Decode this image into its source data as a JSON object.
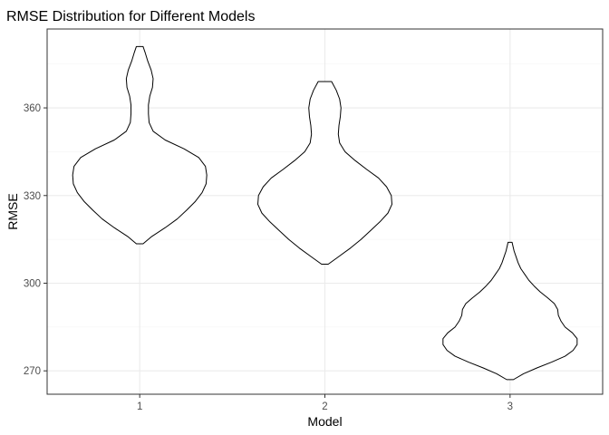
{
  "chart_data": {
    "type": "violin",
    "title": "RMSE Distribution for Different Models",
    "xlabel": "Model",
    "ylabel": "RMSE",
    "categories": [
      "1",
      "2",
      "3"
    ],
    "ylim": [
      262,
      387
    ],
    "yticks": [
      270,
      300,
      330,
      360
    ],
    "grid": true,
    "legend": "none",
    "colors": {
      "outline": "#000000",
      "grid_major": "#ebebeb",
      "grid_minor": "#f5f5f5",
      "panel_border": "#333333",
      "tick_text": "#4d4d4d"
    },
    "series": [
      {
        "category": "1",
        "range": [
          313.5,
          381
        ],
        "density": [
          [
            313.5,
            0.05
          ],
          [
            316,
            0.18
          ],
          [
            319,
            0.38
          ],
          [
            322,
            0.56
          ],
          [
            325,
            0.7
          ],
          [
            328,
            0.83
          ],
          [
            331,
            0.93
          ],
          [
            334,
            0.99
          ],
          [
            337,
            1.0
          ],
          [
            340,
            0.98
          ],
          [
            343,
            0.88
          ],
          [
            346,
            0.66
          ],
          [
            349,
            0.38
          ],
          [
            352,
            0.2
          ],
          [
            355,
            0.14
          ],
          [
            358,
            0.13
          ],
          [
            361,
            0.13
          ],
          [
            364,
            0.15
          ],
          [
            367,
            0.19
          ],
          [
            370,
            0.2
          ],
          [
            373,
            0.17
          ],
          [
            376,
            0.12
          ],
          [
            379,
            0.08
          ],
          [
            381,
            0.05
          ]
        ]
      },
      {
        "category": "2",
        "range": [
          306.5,
          369
        ],
        "density": [
          [
            306.5,
            0.05
          ],
          [
            309,
            0.2
          ],
          [
            312,
            0.38
          ],
          [
            315,
            0.54
          ],
          [
            318,
            0.68
          ],
          [
            321,
            0.82
          ],
          [
            324,
            0.94
          ],
          [
            327,
            1.0
          ],
          [
            330,
            0.99
          ],
          [
            333,
            0.92
          ],
          [
            336,
            0.8
          ],
          [
            339,
            0.62
          ],
          [
            342,
            0.45
          ],
          [
            345,
            0.3
          ],
          [
            348,
            0.22
          ],
          [
            351,
            0.2
          ],
          [
            354,
            0.21
          ],
          [
            357,
            0.23
          ],
          [
            360,
            0.24
          ],
          [
            363,
            0.22
          ],
          [
            366,
            0.17
          ],
          [
            369,
            0.1
          ]
        ]
      },
      {
        "category": "3",
        "range": [
          267,
          314
        ],
        "density": [
          [
            267,
            0.05
          ],
          [
            269,
            0.2
          ],
          [
            271,
            0.4
          ],
          [
            273,
            0.62
          ],
          [
            275,
            0.82
          ],
          [
            277,
            0.94
          ],
          [
            279,
            1.0
          ],
          [
            281,
            1.0
          ],
          [
            283,
            0.93
          ],
          [
            285,
            0.82
          ],
          [
            287,
            0.76
          ],
          [
            289,
            0.72
          ],
          [
            291,
            0.71
          ],
          [
            293,
            0.66
          ],
          [
            295,
            0.56
          ],
          [
            297,
            0.45
          ],
          [
            299,
            0.36
          ],
          [
            301,
            0.28
          ],
          [
            303,
            0.22
          ],
          [
            305,
            0.16
          ],
          [
            307,
            0.12
          ],
          [
            309,
            0.09
          ],
          [
            311,
            0.06
          ],
          [
            313,
            0.04
          ],
          [
            314,
            0.03
          ]
        ]
      }
    ]
  }
}
